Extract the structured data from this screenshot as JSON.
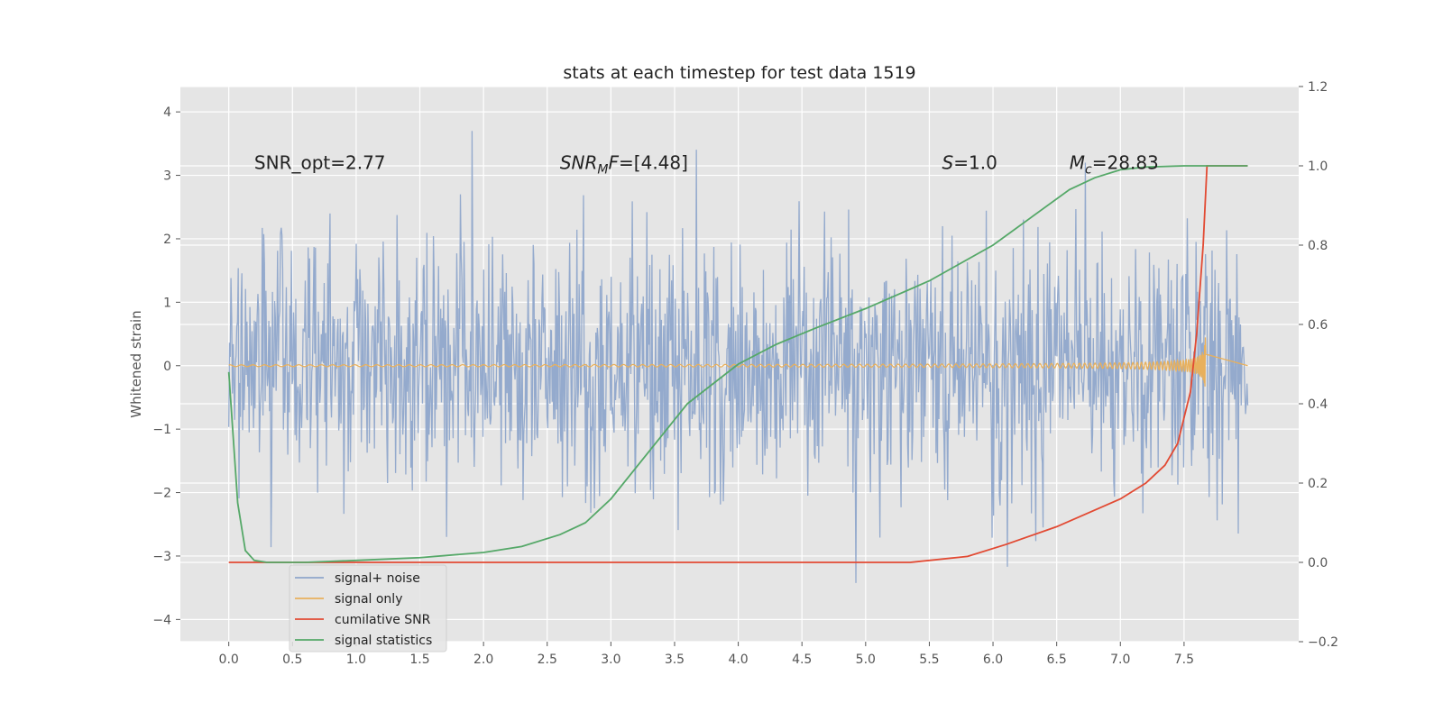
{
  "chart_data": {
    "type": "line",
    "title": "stats at each timestep for test data 1519",
    "xlabel": "",
    "ylabel": "Whitened strain",
    "y2label": "",
    "xlim": [
      -0.38,
      8.4
    ],
    "ylim": [
      -4.35,
      4.4
    ],
    "y2lim": [
      -0.2,
      1.2
    ],
    "xticks": [
      0.0,
      0.5,
      1.0,
      1.5,
      2.0,
      2.5,
      3.0,
      3.5,
      4.0,
      4.5,
      5.0,
      5.5,
      6.0,
      6.5,
      7.0,
      7.5
    ],
    "yticks": [
      -4,
      -3,
      -2,
      -1,
      0,
      1,
      2,
      3,
      4
    ],
    "y2ticks": [
      -0.2,
      0.0,
      0.2,
      0.4,
      0.6,
      0.8,
      1.0,
      1.2
    ],
    "xtick_labels": [
      "0.0",
      "0.5",
      "1.0",
      "1.5",
      "2.0",
      "2.5",
      "3.0",
      "3.5",
      "4.0",
      "4.5",
      "5.0",
      "5.5",
      "6.0",
      "6.5",
      "7.0",
      "7.5"
    ],
    "ytick_labels": [
      "4",
      "3",
      "2",
      "1",
      "0",
      "−1",
      "−2",
      "−3",
      "−4"
    ],
    "y2tick_labels": [
      "1.2",
      "1.0",
      "0.8",
      "0.6",
      "0.4",
      "0.2",
      "0.0",
      "−0.2"
    ],
    "grid": true,
    "legend_position": "lower-left",
    "noise": {
      "x_start": 0.0,
      "x_end": 8.0,
      "n": 1400,
      "spread": 1.0,
      "envelope_max": 4.0,
      "envelope_min": -4.0
    },
    "signal_only": {
      "x_start": 0.0,
      "x_end": 7.67,
      "peak_amplitude": 0.6,
      "merger_x": 7.67
    },
    "series": [
      {
        "name": "signal+ noise",
        "color": "#8fa6cb",
        "axis": "left"
      },
      {
        "name": "signal only",
        "color": "#e8b05c",
        "axis": "left"
      },
      {
        "name": "cumilative SNR",
        "color": "#e24a33",
        "axis": "right",
        "x": [
          0.0,
          0.5,
          1.0,
          2.0,
          3.0,
          4.0,
          5.0,
          5.35,
          5.8,
          6.1,
          6.5,
          7.0,
          7.2,
          7.35,
          7.45,
          7.55,
          7.6,
          7.65,
          7.68,
          7.69,
          8.0
        ],
        "values": [
          0.0,
          0.0,
          0.0,
          0.0,
          0.0,
          0.0,
          0.0,
          0.0,
          0.015,
          0.045,
          0.09,
          0.16,
          0.2,
          0.245,
          0.3,
          0.43,
          0.58,
          0.8,
          1.0,
          1.0,
          1.0
        ]
      },
      {
        "name": "signal statistics",
        "color": "#55a868",
        "axis": "right",
        "x": [
          0.0,
          0.07,
          0.13,
          0.2,
          0.3,
          0.6,
          1.0,
          1.5,
          2.0,
          2.3,
          2.6,
          2.8,
          3.0,
          3.3,
          3.6,
          4.0,
          4.3,
          4.6,
          5.0,
          5.5,
          6.0,
          6.3,
          6.6,
          6.8,
          7.0,
          7.2,
          7.5,
          7.69,
          8.0
        ],
        "values": [
          0.48,
          0.15,
          0.03,
          0.005,
          0.0,
          0.0,
          0.005,
          0.012,
          0.025,
          0.04,
          0.07,
          0.1,
          0.16,
          0.28,
          0.4,
          0.5,
          0.55,
          0.59,
          0.64,
          0.71,
          0.8,
          0.87,
          0.94,
          0.97,
          0.99,
          0.997,
          1.0,
          1.0,
          1.0
        ]
      }
    ],
    "annotations": [
      {
        "x": 0.2,
        "y": 3.2,
        "text": "SNR_opt=2.77"
      },
      {
        "x": 2.6,
        "y": 3.2,
        "text": "=[4.48]",
        "math_base": "SNR",
        "math_sub": "M",
        "math_tail": "F"
      },
      {
        "x": 5.6,
        "y": 3.2,
        "text": "=1.0",
        "math_base": "S"
      },
      {
        "x": 6.6,
        "y": 3.2,
        "text": "=28.83",
        "math_base": "M",
        "math_sub": "c"
      }
    ]
  }
}
